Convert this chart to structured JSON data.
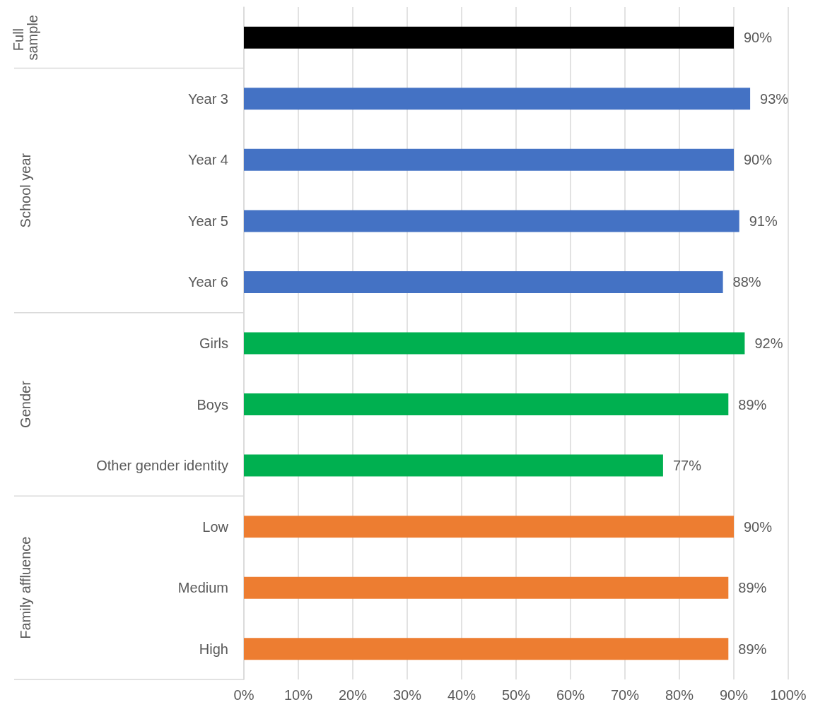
{
  "chart_data": {
    "type": "bar",
    "orientation": "horizontal",
    "categories": [
      null,
      "Year 3",
      "Year 4",
      "Year 5",
      "Year 6",
      "Girls",
      "Boys",
      "Other gender identity",
      "Low",
      "Medium",
      "High"
    ],
    "values": [
      90,
      93,
      90,
      91,
      88,
      92,
      89,
      77,
      90,
      89,
      89
    ],
    "colors": [
      "#000000",
      "#4472c4",
      "#4472c4",
      "#4472c4",
      "#4472c4",
      "#00b050",
      "#00b050",
      "#00b050",
      "#ed7d31",
      "#ed7d31",
      "#ed7d31"
    ],
    "value_labels": [
      "90%",
      "93%",
      "90%",
      "91%",
      "88%",
      "92%",
      "89%",
      "77%",
      "90%",
      "89%",
      "89%"
    ],
    "xlim": [
      0,
      100
    ],
    "xticks": [
      {
        "value": 0,
        "label": "0%"
      },
      {
        "value": 10,
        "label": "10%"
      },
      {
        "value": 20,
        "label": "20%"
      },
      {
        "value": 30,
        "label": "30%"
      },
      {
        "value": 40,
        "label": "40%"
      },
      {
        "value": 50,
        "label": "50%"
      },
      {
        "value": 60,
        "label": "60%"
      },
      {
        "value": 70,
        "label": "70%"
      },
      {
        "value": 80,
        "label": "80%"
      },
      {
        "value": 90,
        "label": "90%"
      },
      {
        "value": 100,
        "label": "100%"
      }
    ],
    "grid": "x",
    "annotations": [
      "Full sample",
      "School year",
      "Gender",
      "Family affluence"
    ]
  }
}
